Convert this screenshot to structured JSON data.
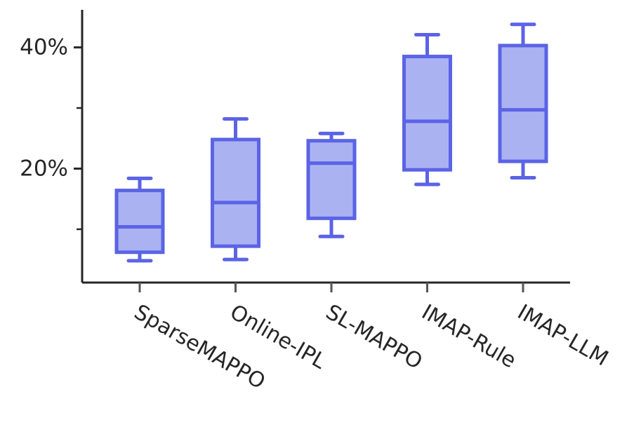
{
  "chart_data": {
    "type": "box",
    "title": "",
    "xlabel": "",
    "ylabel": "",
    "categories": [
      "SparseMAPPO",
      "Online-IPL",
      "SL-MAPPO",
      "IMAP-Rule",
      "IMAP-LLM"
    ],
    "boxes": [
      {
        "category": "SparseMAPPO",
        "whisker_low": 4.8,
        "q1": 6.2,
        "median": 10.4,
        "q3": 16.4,
        "whisker_high": 18.4
      },
      {
        "category": "Online-IPL",
        "whisker_low": 5.0,
        "q1": 7.2,
        "median": 14.4,
        "q3": 24.8,
        "whisker_high": 28.2
      },
      {
        "category": "SL-MAPPO",
        "whisker_low": 8.8,
        "q1": 11.8,
        "median": 20.9,
        "q3": 24.6,
        "whisker_high": 25.8
      },
      {
        "category": "IMAP-Rule",
        "whisker_low": 17.4,
        "q1": 19.8,
        "median": 27.8,
        "q3": 38.5,
        "whisker_high": 42.1
      },
      {
        "category": "IMAP-LLM",
        "whisker_low": 18.5,
        "q1": 21.2,
        "median": 29.7,
        "q3": 40.3,
        "whisker_high": 43.8
      }
    ],
    "ylim": [
      1.2,
      46.2
    ],
    "yticks_major": [
      {
        "value": 20,
        "label": "20%"
      },
      {
        "value": 40,
        "label": "40%"
      }
    ],
    "yticks_minor": [
      10,
      30
    ],
    "grid": false,
    "colors": {
      "box_fill": "#aab2f2",
      "box_edge": "#5b63e6",
      "axis": "#262626"
    }
  }
}
